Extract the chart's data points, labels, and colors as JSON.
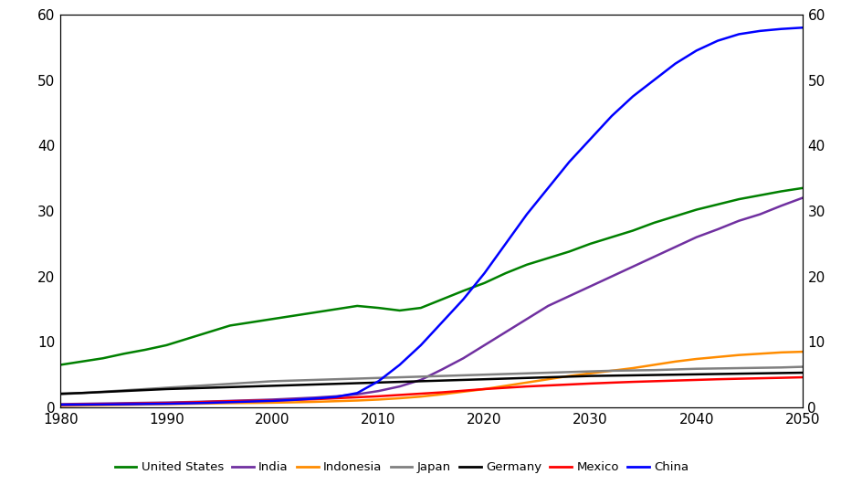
{
  "title": "",
  "years": [
    1980,
    1982,
    1984,
    1986,
    1988,
    1990,
    1992,
    1994,
    1996,
    1998,
    2000,
    2002,
    2004,
    2006,
    2008,
    2010,
    2012,
    2014,
    2016,
    2018,
    2020,
    2022,
    2024,
    2026,
    2028,
    2030,
    2032,
    2034,
    2036,
    2038,
    2040,
    2042,
    2044,
    2046,
    2048,
    2050
  ],
  "series": {
    "United States": {
      "color": "#008000",
      "values": [
        6.5,
        7.0,
        7.5,
        8.2,
        8.8,
        9.5,
        10.5,
        11.5,
        12.5,
        13.0,
        13.5,
        14.0,
        14.5,
        15.0,
        15.5,
        15.2,
        14.8,
        15.2,
        16.5,
        17.8,
        19.0,
        20.5,
        21.8,
        22.8,
        23.8,
        25.0,
        26.0,
        27.0,
        28.2,
        29.2,
        30.2,
        31.0,
        31.8,
        32.4,
        33.0,
        33.5
      ]
    },
    "India": {
      "color": "#7030A0",
      "values": [
        0.5,
        0.55,
        0.6,
        0.65,
        0.7,
        0.75,
        0.82,
        0.9,
        1.0,
        1.1,
        1.2,
        1.35,
        1.5,
        1.7,
        2.0,
        2.5,
        3.2,
        4.2,
        5.8,
        7.5,
        9.5,
        11.5,
        13.5,
        15.5,
        17.0,
        18.5,
        20.0,
        21.5,
        23.0,
        24.5,
        26.0,
        27.2,
        28.5,
        29.5,
        30.8,
        32.0
      ]
    },
    "Indonesia": {
      "color": "#FF8C00",
      "values": [
        0.25,
        0.3,
        0.35,
        0.4,
        0.45,
        0.5,
        0.55,
        0.6,
        0.65,
        0.68,
        0.72,
        0.78,
        0.85,
        0.95,
        1.05,
        1.2,
        1.4,
        1.65,
        2.0,
        2.4,
        2.8,
        3.3,
        3.8,
        4.3,
        4.8,
        5.2,
        5.6,
        6.0,
        6.5,
        7.0,
        7.4,
        7.7,
        8.0,
        8.2,
        8.4,
        8.5
      ]
    },
    "Japan": {
      "color": "#808080",
      "values": [
        2.0,
        2.2,
        2.4,
        2.6,
        2.8,
        3.0,
        3.2,
        3.4,
        3.6,
        3.8,
        4.0,
        4.1,
        4.2,
        4.3,
        4.4,
        4.5,
        4.6,
        4.7,
        4.8,
        4.9,
        5.0,
        5.1,
        5.2,
        5.3,
        5.4,
        5.5,
        5.6,
        5.65,
        5.7,
        5.8,
        5.9,
        5.95,
        6.0,
        6.05,
        6.1,
        6.2
      ]
    },
    "Germany": {
      "color": "#000000",
      "values": [
        2.1,
        2.2,
        2.35,
        2.5,
        2.65,
        2.8,
        2.9,
        3.0,
        3.1,
        3.2,
        3.3,
        3.4,
        3.5,
        3.6,
        3.7,
        3.8,
        3.9,
        4.0,
        4.1,
        4.2,
        4.3,
        4.4,
        4.5,
        4.6,
        4.7,
        4.8,
        4.85,
        4.9,
        4.95,
        5.0,
        5.05,
        5.1,
        5.15,
        5.2,
        5.25,
        5.3
      ]
    },
    "Mexico": {
      "color": "#FF0000",
      "values": [
        0.4,
        0.45,
        0.5,
        0.55,
        0.6,
        0.65,
        0.75,
        0.85,
        0.95,
        1.0,
        1.05,
        1.15,
        1.25,
        1.4,
        1.55,
        1.7,
        1.9,
        2.1,
        2.3,
        2.55,
        2.8,
        3.0,
        3.2,
        3.35,
        3.5,
        3.65,
        3.78,
        3.9,
        4.0,
        4.1,
        4.2,
        4.3,
        4.38,
        4.45,
        4.52,
        4.6
      ]
    },
    "China": {
      "color": "#0000FF",
      "values": [
        0.4,
        0.42,
        0.45,
        0.48,
        0.52,
        0.56,
        0.62,
        0.7,
        0.8,
        0.9,
        1.0,
        1.15,
        1.35,
        1.6,
        2.2,
        4.0,
        6.5,
        9.5,
        13.0,
        16.5,
        20.5,
        25.0,
        29.5,
        33.5,
        37.5,
        41.0,
        44.5,
        47.5,
        50.0,
        52.5,
        54.5,
        56.0,
        57.0,
        57.5,
        57.8,
        58.0
      ]
    }
  },
  "xlim": [
    1980,
    2050
  ],
  "ylim": [
    0,
    60
  ],
  "xticks": [
    1980,
    1990,
    2000,
    2010,
    2020,
    2030,
    2040,
    2050
  ],
  "yticks": [
    0,
    10,
    20,
    30,
    40,
    50,
    60
  ],
  "legend_order": [
    "United States",
    "India",
    "Indonesia",
    "Japan",
    "Germany",
    "Mexico",
    "China"
  ],
  "background_color": "#ffffff",
  "line_width": 1.8
}
